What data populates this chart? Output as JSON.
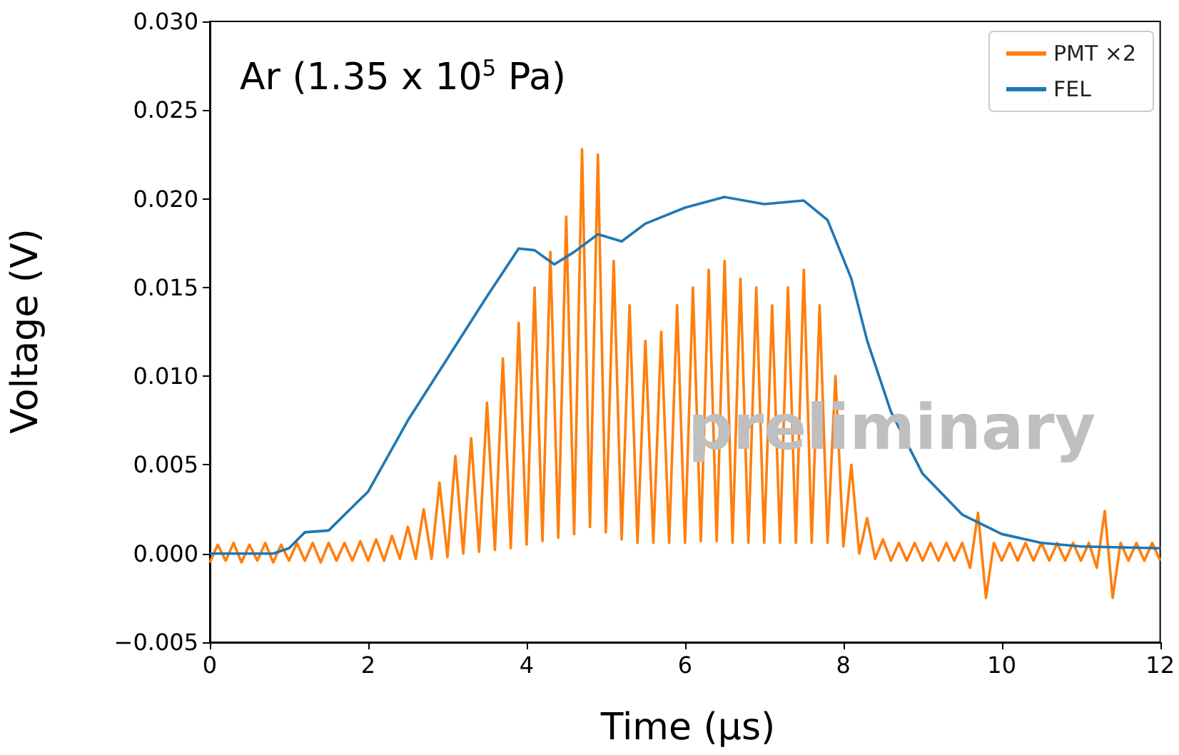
{
  "chart_data": {
    "type": "line",
    "xlabel": "Time (μs)",
    "ylabel": "Voltage (V)",
    "xlim": [
      0,
      12
    ],
    "xticks": [
      0,
      2,
      4,
      6,
      8,
      10,
      12
    ],
    "ylim": [
      -0.005,
      0.03
    ],
    "yticks": [
      {
        "value": -0.005,
        "label": "−0.005"
      },
      {
        "value": 0,
        "label": "0.000"
      },
      {
        "value": 0.005,
        "label": "0.005"
      },
      {
        "value": 0.01,
        "label": "0.010"
      },
      {
        "value": 0.015,
        "label": "0.015"
      },
      {
        "value": 0.02,
        "label": "0.020"
      },
      {
        "value": 0.025,
        "label": "0.025"
      },
      {
        "value": 0.03,
        "label": "0.030"
      }
    ],
    "grid": false,
    "legend": "top right",
    "line_style": "solid",
    "marker": "none",
    "annotations": [
      "Ar (1.35 x 10$^{5}$ Pa)",
      "preliminary"
    ],
    "series": [
      {
        "name": "PMT ×2",
        "color": "#ff7f0e",
        "x": [
          0,
          0.1,
          0.2,
          0.3,
          0.4,
          0.5,
          0.6,
          0.7,
          0.8,
          0.9,
          1.0,
          1.1,
          1.2,
          1.3,
          1.4,
          1.5,
          1.6,
          1.7,
          1.8,
          1.9,
          2.0,
          2.1,
          2.2,
          2.3,
          2.4,
          2.5,
          2.6,
          2.7,
          2.8,
          2.9,
          3.0,
          3.1,
          3.2,
          3.3,
          3.4,
          3.5,
          3.6,
          3.7,
          3.8,
          3.9,
          4.0,
          4.1,
          4.2,
          4.3,
          4.4,
          4.5,
          4.6,
          4.7,
          4.8,
          4.9,
          5.0,
          5.1,
          5.2,
          5.3,
          5.4,
          5.5,
          5.6,
          5.7,
          5.8,
          5.9,
          6.0,
          6.1,
          6.2,
          6.3,
          6.4,
          6.5,
          6.6,
          6.7,
          6.8,
          6.9,
          7.0,
          7.1,
          7.2,
          7.3,
          7.4,
          7.5,
          7.6,
          7.7,
          7.8,
          7.9,
          8.0,
          8.1,
          8.2,
          8.3,
          8.4,
          8.5,
          8.6,
          8.7,
          8.8,
          8.9,
          9.0,
          9.1,
          9.2,
          9.3,
          9.4,
          9.5,
          9.6,
          9.7,
          9.8,
          9.9,
          10.0,
          10.1,
          10.2,
          10.3,
          10.4,
          10.5,
          10.6,
          10.7,
          10.8,
          10.9,
          11.0,
          11.1,
          11.2,
          11.3,
          11.4,
          11.5,
          11.6,
          11.7,
          11.8,
          11.9,
          12.0
        ],
        "values": [
          -0.0005,
          0.0005,
          -0.0004,
          0.0006,
          -0.0005,
          0.0005,
          -0.0004,
          0.0006,
          -0.0005,
          0.0005,
          -0.0004,
          0.0006,
          -0.0004,
          0.0006,
          -0.0005,
          0.0006,
          -0.0004,
          0.0006,
          -0.0004,
          0.0007,
          -0.0004,
          0.0008,
          -0.0004,
          0.001,
          -0.0003,
          0.0015,
          -0.0003,
          0.0025,
          -0.0003,
          0.004,
          -0.0002,
          0.0055,
          0.0,
          0.0065,
          0.0001,
          0.0085,
          0.0002,
          0.011,
          0.0003,
          0.013,
          0.0005,
          0.015,
          0.0007,
          0.017,
          0.0009,
          0.019,
          0.0011,
          0.0228,
          0.0015,
          0.0225,
          0.0012,
          0.0165,
          0.0008,
          0.014,
          0.0006,
          0.012,
          0.0006,
          0.0125,
          0.0006,
          0.014,
          0.0006,
          0.015,
          0.0007,
          0.016,
          0.0007,
          0.0165,
          0.0006,
          0.0155,
          0.0006,
          0.015,
          0.0006,
          0.014,
          0.0006,
          0.015,
          0.0006,
          0.016,
          0.0006,
          0.014,
          0.0006,
          0.01,
          0.0004,
          0.005,
          0.0,
          0.002,
          -0.0003,
          0.0008,
          -0.0004,
          0.0006,
          -0.0004,
          0.0006,
          -0.0004,
          0.0006,
          -0.0004,
          0.0006,
          -0.0004,
          0.0006,
          -0.0008,
          0.0023,
          -0.0025,
          0.0006,
          -0.0004,
          0.0006,
          -0.0004,
          0.0006,
          -0.0004,
          0.0006,
          -0.0004,
          0.0006,
          -0.0004,
          0.0006,
          -0.0004,
          0.0006,
          -0.0008,
          0.0024,
          -0.0025,
          0.0006,
          -0.0004,
          0.0006,
          -0.0004,
          0.0006,
          -0.0004
        ]
      },
      {
        "name": "FEL",
        "color": "#1f77b4",
        "x": [
          0,
          0.8,
          1.0,
          1.2,
          1.5,
          2.0,
          2.5,
          3.0,
          3.5,
          3.9,
          4.1,
          4.35,
          4.6,
          4.9,
          5.2,
          5.5,
          6.0,
          6.5,
          7.0,
          7.5,
          7.8,
          8.1,
          8.3,
          8.6,
          9.0,
          9.5,
          10.0,
          10.5,
          11.0,
          12.0
        ],
        "values": [
          0.0,
          0.0,
          0.0003,
          0.0012,
          0.0013,
          0.0035,
          0.0075,
          0.011,
          0.0145,
          0.0172,
          0.0171,
          0.0163,
          0.017,
          0.018,
          0.0176,
          0.0186,
          0.0195,
          0.0201,
          0.0197,
          0.0199,
          0.0188,
          0.0155,
          0.012,
          0.008,
          0.0045,
          0.0022,
          0.0011,
          0.0006,
          0.0004,
          0.0003
        ]
      }
    ]
  }
}
